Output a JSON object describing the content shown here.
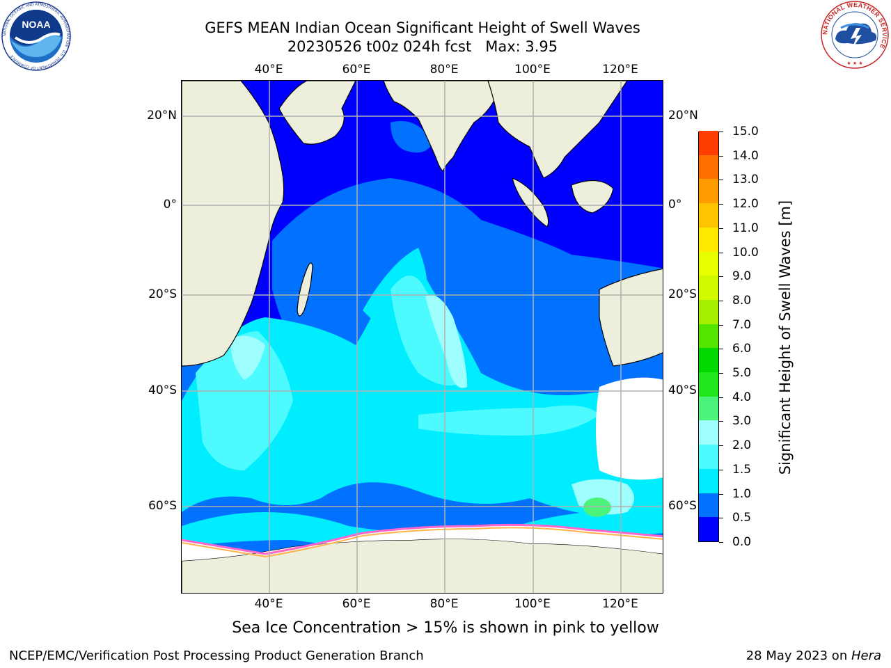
{
  "title": {
    "line1": "GEFS MEAN Indian Ocean Significant Height of Swell Waves",
    "line2": "20230526 t00z 024h fcst   Max: 3.95"
  },
  "map": {
    "lon_ticks": [
      "40°E",
      "60°E",
      "80°E",
      "100°E",
      "120°E"
    ],
    "lat_ticks": [
      "20°N",
      "0°",
      "20°S",
      "40°S",
      "60°S"
    ],
    "lon_range": [
      20,
      130
    ],
    "lat_range": [
      -77,
      28
    ],
    "land_color": "#eeeedd",
    "sea_ice_color": "#ffffff",
    "regions": {
      "open_ocean_dominant": "0.0-0.5 m",
      "southern_ocean_band": "1.0-2.0 m",
      "max_region_se": "3.0-3.5 m"
    }
  },
  "colorbar": {
    "label": "Significant Height of Swell Waves [m]",
    "ticks": [
      "0.0",
      "0.5",
      "1.0",
      "1.5",
      "2.0",
      "3.0",
      "4.0",
      "5.0",
      "6.0",
      "7.0",
      "8.0",
      "9.0",
      "10.0",
      "11.0",
      "12.0",
      "13.0",
      "14.0",
      "15.0"
    ],
    "colors": [
      "#0000ff",
      "#0072ff",
      "#00ecff",
      "#4dfbff",
      "#9fffff",
      "#4df27a",
      "#22e61e",
      "#00d800",
      "#55e600",
      "#a6ee00",
      "#d2f800",
      "#e8ff00",
      "#ffea00",
      "#ffc400",
      "#ff9c00",
      "#ff6f00",
      "#ff3c00",
      "#ff0000"
    ]
  },
  "ice_note": "Sea Ice Concentration > 15% is shown in pink to yellow",
  "footer": {
    "left": "NCEP/EMC/Verification Post Processing Product Generation Branch",
    "right_date": "28 May 2023 on ",
    "right_host": "Hera"
  },
  "logos": {
    "left": "noaa-logo",
    "right": "nws-logo",
    "left_text": "NOAA",
    "left_ring_text": "NATIONAL OCEANIC AND ATMOSPHERIC ADMINISTRATION · U.S. DEPARTMENT OF COMMERCE",
    "right_ring_text": "NATIONAL WEATHER SERVICE"
  }
}
